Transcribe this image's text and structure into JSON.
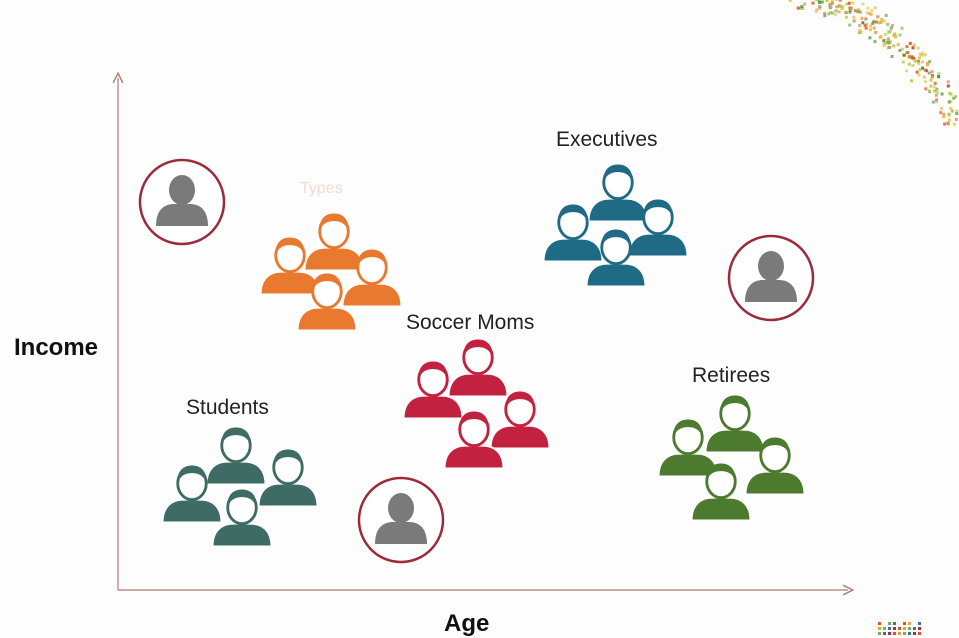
{
  "axes": {
    "x_label": "Age",
    "y_label": "Income"
  },
  "faint_text": "Types",
  "groups": [
    {
      "id": "executives",
      "label": "Executives",
      "color": "#1f6b86"
    },
    {
      "id": "types",
      "label": "",
      "color": "#e8792f"
    },
    {
      "id": "soccer-moms",
      "label": "Soccer Moms",
      "color": "#c2213f"
    },
    {
      "id": "students",
      "label": "Students",
      "color": "#3e6b64"
    },
    {
      "id": "retirees",
      "label": "Retirees",
      "color": "#4c7a2e"
    }
  ],
  "individual_color": "#7a7a7a",
  "ring_color": "#9b2b3a",
  "axis_color": "#b07a74"
}
